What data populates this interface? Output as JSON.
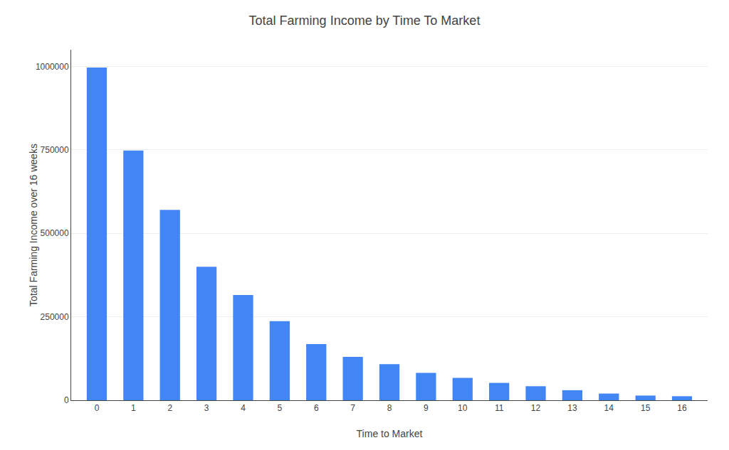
{
  "chart_data": {
    "type": "bar",
    "title": "Total Farming Income by Time To Market",
    "xlabel": "Time to Market",
    "ylabel": "Total Farming Income over 16 weeks",
    "x": [
      0,
      1,
      2,
      3,
      4,
      5,
      6,
      7,
      8,
      9,
      10,
      11,
      12,
      13,
      14,
      15,
      16
    ],
    "values": [
      997000,
      748000,
      570000,
      400000,
      315000,
      237000,
      168000,
      130000,
      108000,
      82000,
      67000,
      52000,
      42000,
      30000,
      20000,
      14000,
      12000
    ],
    "color": "#4285F4",
    "xlim": [
      -0.7,
      16.7
    ],
    "xticks": [
      0,
      1,
      2,
      3,
      4,
      5,
      6,
      7,
      8,
      9,
      10,
      11,
      12,
      13,
      14,
      15,
      16
    ],
    "ylim": [
      0,
      1050000
    ],
    "yticks": [
      0,
      250000,
      500000,
      750000,
      1000000
    ],
    "grid": true
  }
}
